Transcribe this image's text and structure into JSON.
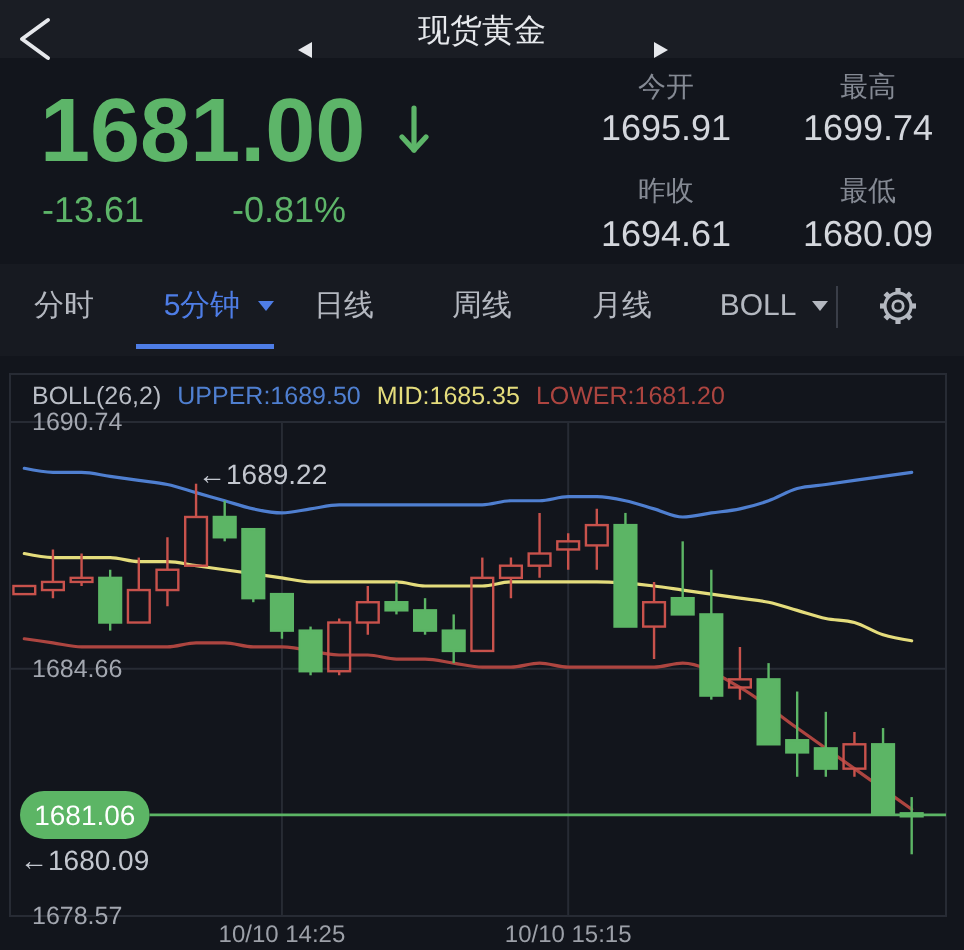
{
  "chart_data": {
    "type": "candlestick",
    "title": "现货黄金",
    "annotations": [
      "1681.00",
      "-13.61",
      "-0.81%",
      "今开",
      "1695.91",
      "最高",
      "1699.74",
      "昨收",
      "1694.61",
      "最低",
      "1680.09",
      "分时",
      "5分钟",
      "日线",
      "周线",
      "月线",
      "BOLL",
      "←1689.22",
      "←1680.09"
    ],
    "categories": [
      null,
      null,
      null,
      null,
      null,
      null,
      null,
      null,
      null,
      "10/10 14:25",
      null,
      null,
      null,
      null,
      null,
      null,
      null,
      null,
      null,
      "10/10 15:15",
      null,
      null,
      null,
      null,
      null,
      null,
      null,
      null,
      null,
      null,
      null,
      null
    ],
    "ohlc": [
      [
        1686.5,
        1686.7,
        1686.5,
        1686.7
      ],
      [
        1686.6,
        1687.6,
        1686.4,
        1686.8
      ],
      [
        1686.8,
        1687.5,
        1686.7,
        1686.9
      ],
      [
        1686.9,
        1687.1,
        1685.6,
        1685.8
      ],
      [
        1685.8,
        1687.4,
        1685.8,
        1686.6
      ],
      [
        1686.6,
        1687.9,
        1686.2,
        1687.1
      ],
      [
        1687.2,
        1689.22,
        1687.2,
        1688.4
      ],
      [
        1688.4,
        1688.8,
        1687.8,
        1687.9
      ],
      [
        1688.1,
        1688.1,
        1686.3,
        1686.4
      ],
      [
        1686.5,
        1686.5,
        1685.4,
        1685.6
      ],
      [
        1685.6,
        1685.7,
        1684.5,
        1684.6
      ],
      [
        1684.6,
        1685.9,
        1684.5,
        1685.8
      ],
      [
        1685.8,
        1686.7,
        1685.5,
        1686.3
      ],
      [
        1686.3,
        1686.8,
        1686.0,
        1686.1
      ],
      [
        1686.1,
        1686.4,
        1685.5,
        1685.6
      ],
      [
        1685.6,
        1686.0,
        1684.8,
        1685.1
      ],
      [
        1685.1,
        1687.4,
        1685.1,
        1686.9
      ],
      [
        1686.9,
        1687.4,
        1686.4,
        1687.2
      ],
      [
        1687.2,
        1688.5,
        1686.9,
        1687.5
      ],
      [
        1687.6,
        1688.0,
        1687.1,
        1687.8
      ],
      [
        1687.7,
        1688.6,
        1687.1,
        1688.2
      ],
      [
        1688.2,
        1688.5,
        1685.7,
        1685.7
      ],
      [
        1685.7,
        1686.8,
        1684.9,
        1686.3
      ],
      [
        1686.4,
        1687.8,
        1686.0,
        1686.0
      ],
      [
        1686.0,
        1687.1,
        1683.9,
        1684.0
      ],
      [
        1684.2,
        1685.2,
        1683.9,
        1684.4
      ],
      [
        1684.4,
        1684.8,
        1682.8,
        1682.8
      ],
      [
        1682.9,
        1684.1,
        1682.0,
        1682.6
      ],
      [
        1682.7,
        1683.6,
        1682.0,
        1682.2
      ],
      [
        1682.2,
        1683.1,
        1682.0,
        1682.8
      ],
      [
        1682.8,
        1683.2,
        1681.1,
        1681.1
      ],
      [
        1681.1,
        1681.5,
        1680.09,
        1681.06
      ]
    ],
    "colors": [
      "#c8524c",
      "#c8524c",
      "#c8524c",
      "#5cb565",
      "#c8524c",
      "#c8524c",
      "#c8524c",
      "#5cb565",
      "#5cb565",
      "#5cb565",
      "#5cb565",
      "#c8524c",
      "#c8524c",
      "#5cb565",
      "#5cb565",
      "#5cb565",
      "#c8524c",
      "#c8524c",
      "#c8524c",
      "#c8524c",
      "#c8524c",
      "#5cb565",
      "#c8524c",
      "#5cb565",
      "#5cb565",
      "#c8524c",
      "#5cb565",
      "#5cb565",
      "#5cb565",
      "#c8524c",
      "#5cb565",
      "#5cb565"
    ],
    "legend_title": "BOLL(26,2)",
    "legend": "top left",
    "series": [
      {
        "type": "line",
        "name": "UPPER:1689.50",
        "color": "#4f7fd0",
        "values": [
          1689.6,
          1689.5,
          1689.5,
          1689.4,
          1689.3,
          1689.2,
          1689.0,
          1688.8,
          1688.6,
          1688.5,
          1688.6,
          1688.7,
          1688.7,
          1688.7,
          1688.7,
          1688.7,
          1688.7,
          1688.8,
          1688.8,
          1688.9,
          1688.9,
          1688.8,
          1688.6,
          1688.4,
          1688.5,
          1688.6,
          1688.8,
          1689.1,
          1689.2,
          1689.3,
          1689.4,
          1689.5
        ]
      },
      {
        "type": "line",
        "name": "MID:1685.35",
        "color": "#e4dc7c",
        "values": [
          1687.5,
          1687.4,
          1687.4,
          1687.4,
          1687.3,
          1687.3,
          1687.2,
          1687.1,
          null,
          1686.9,
          1686.8,
          1686.8,
          1686.8,
          1686.8,
          1686.7,
          1686.7,
          1686.7,
          1686.8,
          1686.8,
          1686.8,
          1686.8,
          null,
          1686.7,
          1686.6,
          1686.5,
          1686.4,
          1686.3,
          1686.1,
          1685.9,
          1685.8,
          1685.5,
          1685.35
        ]
      },
      {
        "type": "line",
        "name": "LOWER:1681.20",
        "color": "#ad4540",
        "values": [
          1685.4,
          1685.3,
          1685.2,
          1685.2,
          1685.2,
          1685.2,
          1685.3,
          1685.3,
          1685.2,
          1685.2,
          null,
          1685.0,
          1685.0,
          1684.9,
          1684.9,
          1684.8,
          1684.7,
          1684.7,
          1684.8,
          1684.7,
          1684.7,
          1684.7,
          1684.7,
          1684.8,
          null,
          1684.2,
          null,
          1683.2,
          1682.7,
          1682.2,
          null,
          1681.2
        ]
      }
    ],
    "ylim": [
      1678.57,
      1690.74
    ],
    "yticks": [
      1690.74,
      1684.66,
      1678.57
    ],
    "grid": true,
    "ref_lines": [
      {
        "axis": "y",
        "value": 1681.06,
        "label": "1681.06",
        "color": "#5cb565"
      }
    ]
  }
}
